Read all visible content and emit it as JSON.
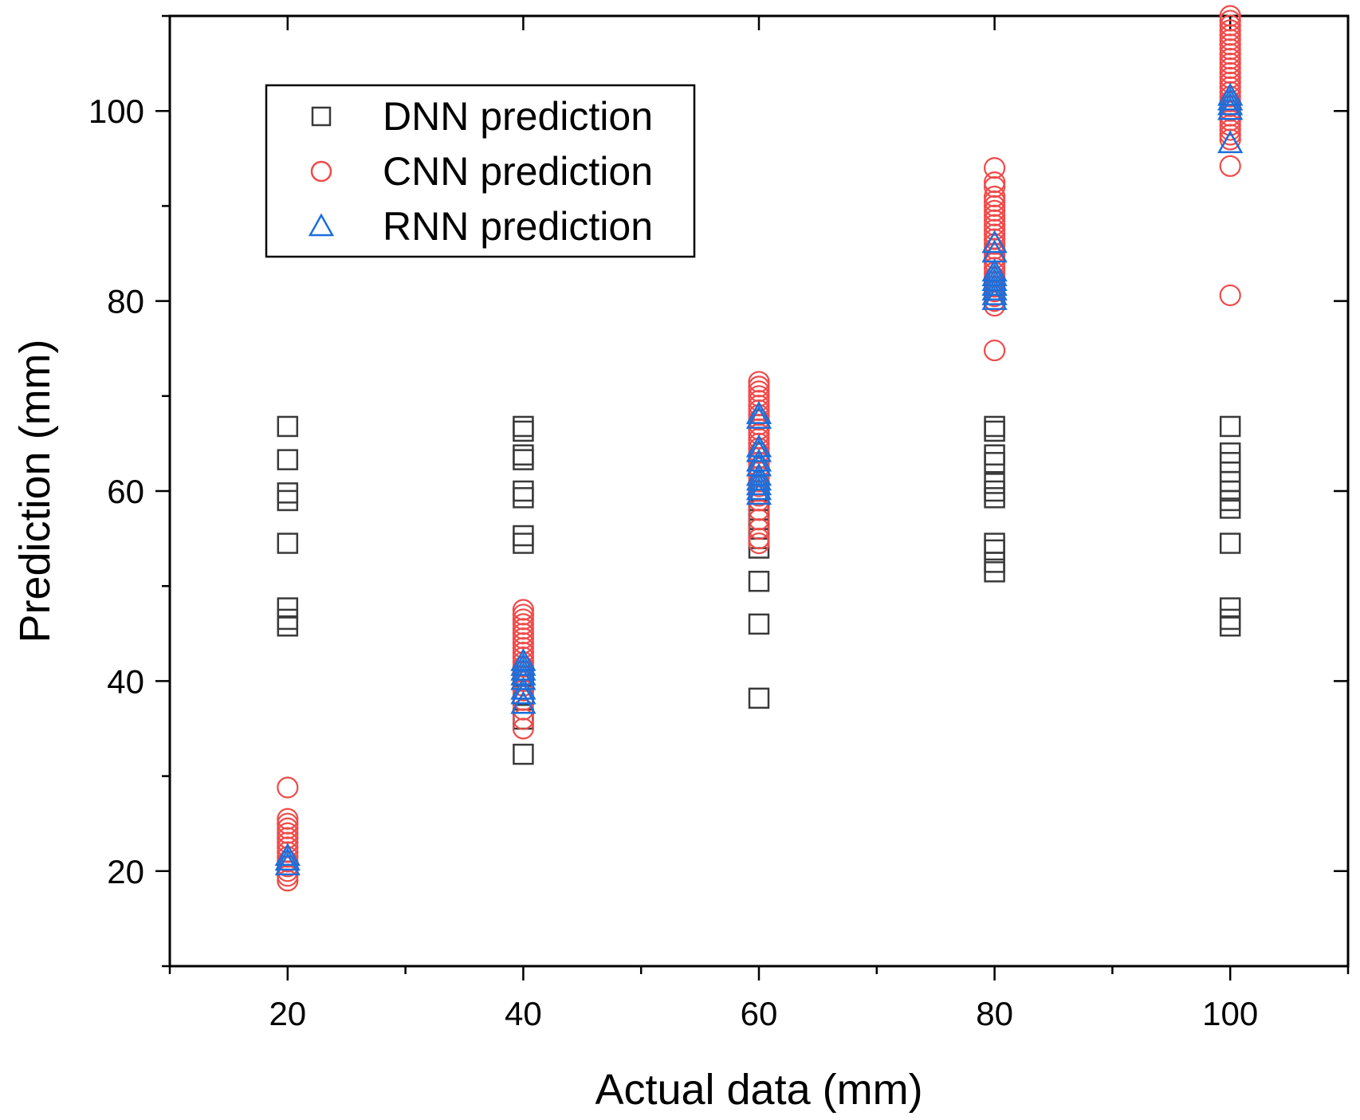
{
  "chart_data": {
    "type": "scatter",
    "title": "",
    "xlabel": "Actual data (mm)",
    "ylabel": "Prediction (mm)",
    "xlim": [
      10,
      110
    ],
    "ylim": [
      10,
      110
    ],
    "x_ticks": [
      20,
      40,
      60,
      80,
      100
    ],
    "y_ticks": [
      20,
      40,
      60,
      80,
      100
    ],
    "grid": false,
    "legend_position": "top-left",
    "colors": {
      "DNN": "#3a3a3a",
      "CNN": "#f04a4a",
      "RNN": "#1a6fdc"
    },
    "series": [
      {
        "name": "DNN prediction",
        "marker": "square",
        "points": [
          [
            20,
            66.8
          ],
          [
            20,
            63.3
          ],
          [
            20,
            59.8
          ],
          [
            20,
            59.0
          ],
          [
            20,
            54.5
          ],
          [
            20,
            47.7
          ],
          [
            20,
            46.5
          ],
          [
            20,
            45.8
          ],
          [
            40,
            66.8
          ],
          [
            40,
            66.3
          ],
          [
            40,
            63.8
          ],
          [
            40,
            63.3
          ],
          [
            40,
            60.0
          ],
          [
            40,
            59.3
          ],
          [
            40,
            55.3
          ],
          [
            40,
            54.5
          ],
          [
            40,
            40.5
          ],
          [
            40,
            38.5
          ],
          [
            40,
            36.0
          ],
          [
            40,
            32.3
          ],
          [
            60,
            59.0
          ],
          [
            60,
            58.0
          ],
          [
            60,
            57.0
          ],
          [
            60,
            56.0
          ],
          [
            60,
            55.0
          ],
          [
            60,
            54.0
          ],
          [
            60,
            50.5
          ],
          [
            60,
            46.0
          ],
          [
            60,
            38.2
          ],
          [
            80,
            66.8
          ],
          [
            80,
            66.3
          ],
          [
            80,
            63.8
          ],
          [
            80,
            63.0
          ],
          [
            80,
            60.8
          ],
          [
            80,
            60.0
          ],
          [
            80,
            59.3
          ],
          [
            80,
            54.5
          ],
          [
            80,
            53.8
          ],
          [
            80,
            52.5
          ],
          [
            80,
            51.5
          ],
          [
            100,
            66.8
          ],
          [
            100,
            64.0
          ],
          [
            100,
            63.0
          ],
          [
            100,
            62.0
          ],
          [
            100,
            61.0
          ],
          [
            100,
            60.0
          ],
          [
            100,
            59.0
          ],
          [
            100,
            58.2
          ],
          [
            100,
            54.5
          ],
          [
            100,
            47.7
          ],
          [
            100,
            46.5
          ],
          [
            100,
            45.8
          ]
        ]
      },
      {
        "name": "CNN prediction",
        "marker": "circle",
        "points": [
          [
            20,
            28.8
          ],
          [
            20,
            25.5
          ],
          [
            20,
            25.0
          ],
          [
            20,
            24.5
          ],
          [
            20,
            24.0
          ],
          [
            20,
            23.5
          ],
          [
            20,
            23.0
          ],
          [
            20,
            22.5
          ],
          [
            20,
            22.0
          ],
          [
            20,
            21.5
          ],
          [
            20,
            21.0
          ],
          [
            20,
            20.5
          ],
          [
            20,
            20.0
          ],
          [
            20,
            19.5
          ],
          [
            20,
            19.0
          ],
          [
            40,
            47.5
          ],
          [
            40,
            47.0
          ],
          [
            40,
            46.5
          ],
          [
            40,
            46.0
          ],
          [
            40,
            45.5
          ],
          [
            40,
            45.0
          ],
          [
            40,
            44.5
          ],
          [
            40,
            44.0
          ],
          [
            40,
            43.5
          ],
          [
            40,
            43.0
          ],
          [
            40,
            42.5
          ],
          [
            40,
            42.0
          ],
          [
            40,
            41.5
          ],
          [
            40,
            41.0
          ],
          [
            40,
            40.5
          ],
          [
            40,
            40.0
          ],
          [
            40,
            39.5
          ],
          [
            40,
            39.0
          ],
          [
            40,
            38.0
          ],
          [
            40,
            37.0
          ],
          [
            40,
            36.0
          ],
          [
            40,
            35.0
          ],
          [
            60,
            71.5
          ],
          [
            60,
            71.0
          ],
          [
            60,
            70.5
          ],
          [
            60,
            70.0
          ],
          [
            60,
            69.5
          ],
          [
            60,
            69.0
          ],
          [
            60,
            68.5
          ],
          [
            60,
            68.0
          ],
          [
            60,
            67.5
          ],
          [
            60,
            67.0
          ],
          [
            60,
            66.5
          ],
          [
            60,
            66.0
          ],
          [
            60,
            65.5
          ],
          [
            60,
            65.0
          ],
          [
            60,
            64.5
          ],
          [
            60,
            64.0
          ],
          [
            60,
            63.5
          ],
          [
            60,
            63.0
          ],
          [
            60,
            62.5
          ],
          [
            60,
            62.0
          ],
          [
            60,
            61.5
          ],
          [
            60,
            61.0
          ],
          [
            60,
            60.5
          ],
          [
            60,
            60.0
          ],
          [
            60,
            59.5
          ],
          [
            60,
            59.0
          ],
          [
            60,
            58.0
          ],
          [
            60,
            57.0
          ],
          [
            60,
            56.0
          ],
          [
            60,
            55.0
          ],
          [
            60,
            54.5
          ],
          [
            80,
            94.0
          ],
          [
            80,
            92.5
          ],
          [
            80,
            92.0
          ],
          [
            80,
            91.0
          ],
          [
            80,
            90.5
          ],
          [
            80,
            90.0
          ],
          [
            80,
            89.5
          ],
          [
            80,
            89.0
          ],
          [
            80,
            88.5
          ],
          [
            80,
            88.0
          ],
          [
            80,
            87.5
          ],
          [
            80,
            87.0
          ],
          [
            80,
            86.5
          ],
          [
            80,
            86.0
          ],
          [
            80,
            85.5
          ],
          [
            80,
            85.0
          ],
          [
            80,
            84.5
          ],
          [
            80,
            84.0
          ],
          [
            80,
            83.5
          ],
          [
            80,
            83.0
          ],
          [
            80,
            82.5
          ],
          [
            80,
            82.0
          ],
          [
            80,
            81.5
          ],
          [
            80,
            81.0
          ],
          [
            80,
            80.5
          ],
          [
            80,
            80.0
          ],
          [
            80,
            79.5
          ],
          [
            80,
            74.8
          ],
          [
            100,
            110.0
          ],
          [
            100,
            109.5
          ],
          [
            100,
            109.0
          ],
          [
            100,
            108.5
          ],
          [
            100,
            108.0
          ],
          [
            100,
            107.5
          ],
          [
            100,
            107.0
          ],
          [
            100,
            106.5
          ],
          [
            100,
            106.0
          ],
          [
            100,
            105.5
          ],
          [
            100,
            105.0
          ],
          [
            100,
            104.5
          ],
          [
            100,
            104.0
          ],
          [
            100,
            103.5
          ],
          [
            100,
            103.0
          ],
          [
            100,
            102.5
          ],
          [
            100,
            102.0
          ],
          [
            100,
            101.5
          ],
          [
            100,
            101.0
          ],
          [
            100,
            100.5
          ],
          [
            100,
            100.0
          ],
          [
            100,
            99.5
          ],
          [
            100,
            99.0
          ],
          [
            100,
            98.5
          ],
          [
            100,
            98.0
          ],
          [
            100,
            97.5
          ],
          [
            100,
            97.0
          ],
          [
            100,
            94.2
          ],
          [
            100,
            80.6
          ]
        ]
      },
      {
        "name": "RNN prediction",
        "marker": "triangle",
        "points": [
          [
            20,
            21.5
          ],
          [
            20,
            21.0
          ],
          [
            20,
            20.5
          ],
          [
            40,
            42.0
          ],
          [
            40,
            41.5
          ],
          [
            40,
            41.0
          ],
          [
            40,
            40.5
          ],
          [
            40,
            40.0
          ],
          [
            40,
            39.0
          ],
          [
            40,
            38.5
          ],
          [
            40,
            37.5
          ],
          [
            60,
            68.0
          ],
          [
            60,
            67.5
          ],
          [
            60,
            64.5
          ],
          [
            60,
            64.0
          ],
          [
            60,
            63.0
          ],
          [
            60,
            62.5
          ],
          [
            60,
            61.5
          ],
          [
            60,
            61.0
          ],
          [
            60,
            60.5
          ],
          [
            60,
            60.0
          ],
          [
            60,
            59.5
          ],
          [
            80,
            86.0
          ],
          [
            80,
            85.0
          ],
          [
            80,
            83.0
          ],
          [
            80,
            82.5
          ],
          [
            80,
            82.0
          ],
          [
            80,
            81.5
          ],
          [
            80,
            81.0
          ],
          [
            80,
            80.5
          ],
          [
            80,
            80.0
          ],
          [
            100,
            101.5
          ],
          [
            100,
            101.0
          ],
          [
            100,
            100.5
          ],
          [
            100,
            100.0
          ],
          [
            100,
            96.5
          ]
        ]
      }
    ]
  }
}
